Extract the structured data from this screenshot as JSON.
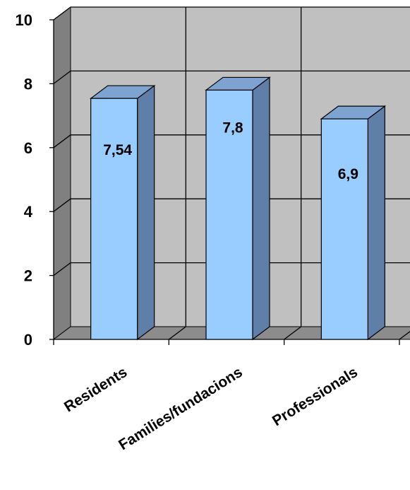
{
  "chart_data": {
    "type": "bar",
    "categories": [
      "Residents",
      "Families/fundacions",
      "Professionals"
    ],
    "values": [
      7.54,
      7.8,
      6.9
    ],
    "data_labels": [
      "7,54",
      "7,8",
      "6,9"
    ],
    "y_ticks": [
      "0",
      "2",
      "4",
      "6",
      "8",
      "10"
    ],
    "ylim": [
      0,
      10
    ],
    "title": "",
    "xlabel": "",
    "ylabel": "",
    "grid": true,
    "three_d": true,
    "colors": {
      "bar_front": "#99ccff",
      "bar_side": "#5f7fa8",
      "bar_top": "#7ea3d0",
      "back_wall": "#c0c0c0",
      "side_wall": "#808080",
      "floor": "#8c8c8c"
    }
  }
}
